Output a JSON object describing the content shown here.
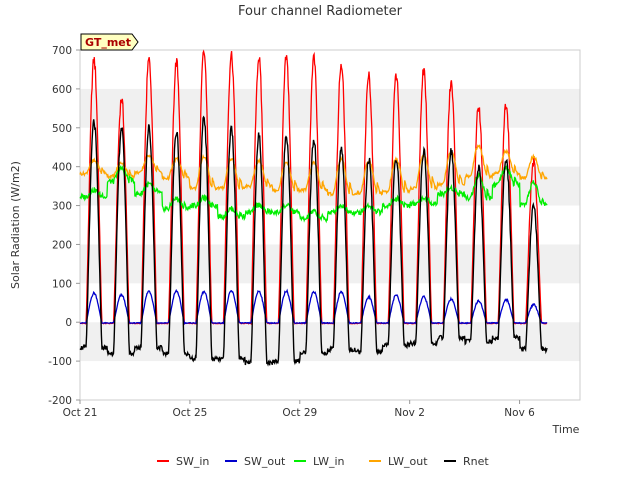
{
  "chart_data": {
    "type": "line",
    "title": "Four channel Radiometer",
    "xlabel": "Time",
    "ylabel": "Solar Radiation (W/m2)",
    "annotation": "GT_met",
    "x_start": "Oct 21",
    "x_range_days": [
      0,
      18.2
    ],
    "ylim": [
      -200,
      700
    ],
    "yticks": [
      -200,
      -100,
      0,
      100,
      200,
      300,
      400,
      500,
      600,
      700
    ],
    "xticks": [
      {
        "label": "Oct 21",
        "day": 0
      },
      {
        "label": "Oct 25",
        "day": 4
      },
      {
        "label": "Oct 29",
        "day": 8
      },
      {
        "label": "Nov 2",
        "day": 12
      },
      {
        "label": "Nov 6",
        "day": 16
      }
    ],
    "grid": "alternating horizontal bands",
    "legend_position": "bottom",
    "series": [
      {
        "name": "SW_in",
        "color": "#ff0000",
        "daily_peaks": [
          675,
          575,
          675,
          670,
          695,
          690,
          680,
          680,
          680,
          665,
          635,
          635,
          650,
          615,
          555,
          565,
          410
        ],
        "night_value": -3
      },
      {
        "name": "SW_out",
        "color": "#0000cc",
        "daily_peaks": [
          75,
          70,
          80,
          80,
          78,
          80,
          80,
          80,
          78,
          78,
          65,
          70,
          65,
          60,
          55,
          58,
          45
        ],
        "night_value": -2
      },
      {
        "name": "LW_in",
        "color": "#00ee00",
        "night_values": [
          322,
          362,
          330,
          292,
          300,
          272,
          282,
          282,
          265,
          282,
          282,
          300,
          305,
          330,
          320,
          355,
          300
        ],
        "day_values": [
          340,
          395,
          355,
          318,
          320,
          292,
          302,
          300,
          285,
          300,
          300,
          318,
          318,
          345,
          378,
          395,
          360
        ]
      },
      {
        "name": "LW_out",
        "color": "#ffa500",
        "night_values": [
          382,
          375,
          385,
          370,
          345,
          345,
          350,
          340,
          340,
          330,
          332,
          335,
          345,
          355,
          375,
          382,
          370
        ],
        "day_values": [
          415,
          410,
          430,
          420,
          425,
          420,
          415,
          410,
          410,
          420,
          415,
          420,
          430,
          440,
          455,
          440,
          425
        ]
      },
      {
        "name": "Rnet",
        "color": "#000000",
        "daily_peaks": [
          515,
          500,
          500,
          490,
          530,
          500,
          480,
          480,
          470,
          450,
          420,
          425,
          440,
          440,
          400,
          420,
          300
        ],
        "night_values": [
          -65,
          -80,
          -65,
          -80,
          -95,
          -95,
          -105,
          -100,
          -80,
          -70,
          -75,
          -60,
          -55,
          -40,
          -50,
          -40,
          -70
        ]
      }
    ]
  }
}
